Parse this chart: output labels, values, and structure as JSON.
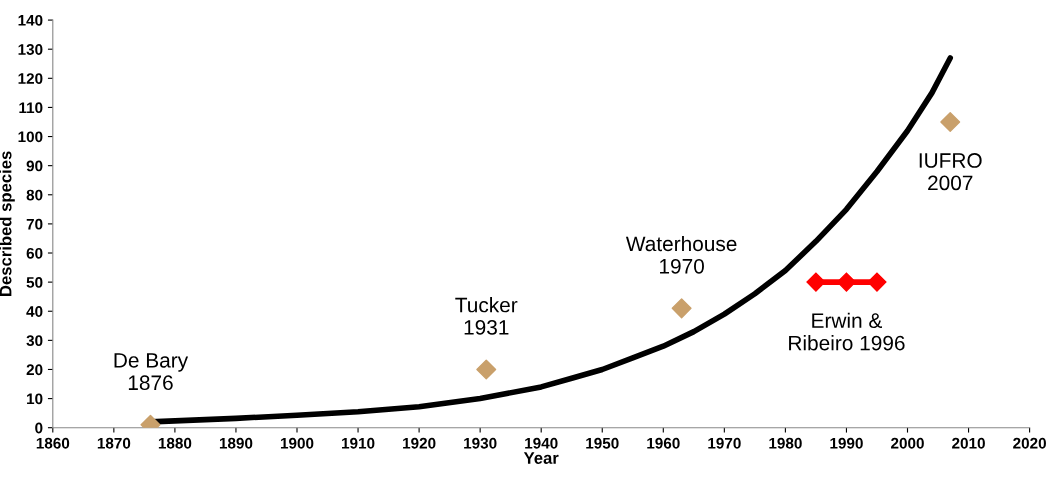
{
  "chart_data": {
    "type": "line",
    "xlabel": "Year",
    "ylabel": "Described species",
    "xlim": [
      1860,
      2020
    ],
    "xticks": [
      1860,
      1870,
      1880,
      1890,
      1900,
      1910,
      1920,
      1930,
      1940,
      1950,
      1960,
      1970,
      1980,
      1990,
      2000,
      2010,
      2020
    ],
    "ylim": [
      0,
      140
    ],
    "yticks": [
      0,
      10,
      20,
      30,
      40,
      50,
      60,
      70,
      80,
      90,
      100,
      110,
      120,
      130,
      140
    ],
    "grid": false,
    "legend": false,
    "series": [
      {
        "color": "#000000",
        "marker": "none",
        "x": [
          1876,
          1890,
          1900,
          1910,
          1920,
          1930,
          1940,
          1945,
          1950,
          1955,
          1960,
          1965,
          1970,
          1975,
          1980,
          1985,
          1990,
          1995,
          2000,
          2004,
          2007
        ],
        "values": [
          2,
          3.2,
          4.3,
          5.5,
          7.2,
          10,
          14,
          17,
          20,
          24,
          28,
          33,
          39,
          46,
          54,
          64,
          75,
          88,
          102,
          115,
          127
        ]
      },
      {
        "type": "scatter",
        "color": "#c9a06b",
        "marker": "diamond",
        "x": [
          1876,
          1931,
          1963,
          2007
        ],
        "values": [
          1,
          20,
          41,
          105
        ]
      },
      {
        "type": "line",
        "color": "#ff0000",
        "marker": "diamond",
        "x": [
          1985,
          1990,
          1995
        ],
        "values": [
          50,
          50,
          50
        ]
      }
    ],
    "annotations": [
      {
        "text": "De Bary\n1876",
        "x": 1876,
        "y": 1
      },
      {
        "text": "Tucker\n1931",
        "x": 1931,
        "y": 20
      },
      {
        "text": "Waterhouse\n1970",
        "x": 1963,
        "y": 41
      },
      {
        "text": "Erwin &\nRibeiro 1996",
        "x": 1990,
        "y": 50
      },
      {
        "text": "IUFRO\n2007",
        "x": 2007,
        "y": 105
      }
    ]
  }
}
